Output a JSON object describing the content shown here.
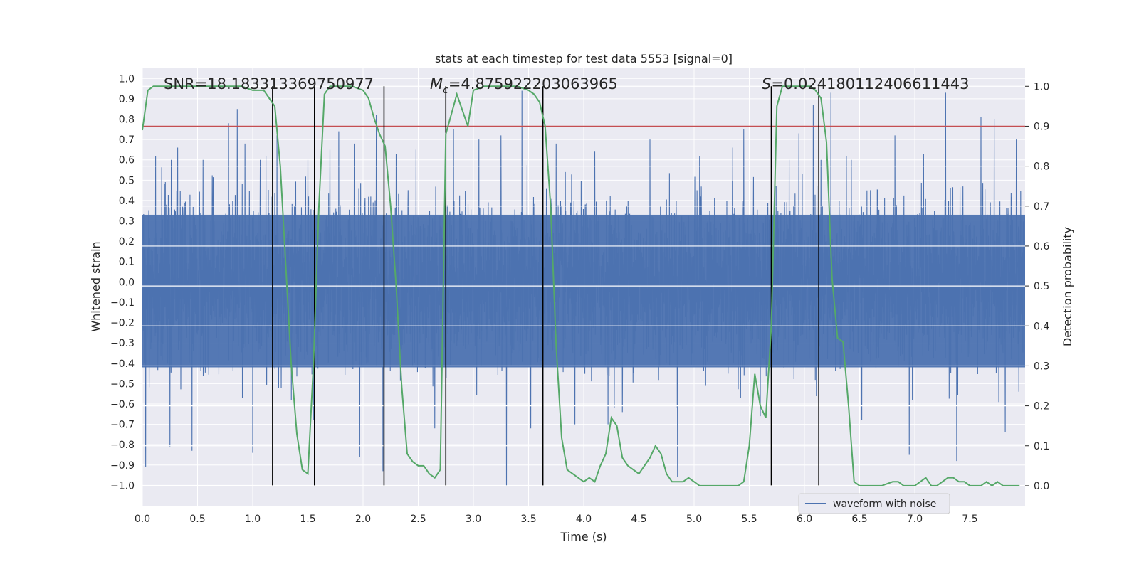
{
  "chart_data": {
    "type": "line",
    "title": "stats at each timestep for test data 5553 [signal=0]",
    "xlabel": "Time (s)",
    "ylabel": "Whitened strain",
    "y2label": "Detection probability",
    "xlim": [
      0.0,
      8.0
    ],
    "ylim": [
      -1.1,
      1.05
    ],
    "y2lim": [
      -0.05,
      1.045
    ],
    "xticks": [
      0.0,
      0.5,
      1.0,
      1.5,
      2.0,
      2.5,
      3.0,
      3.5,
      4.0,
      4.5,
      5.0,
      5.5,
      6.0,
      6.5,
      7.0,
      7.5
    ],
    "yticks": [
      -1.0,
      -0.9,
      -0.8,
      -0.7,
      -0.6,
      -0.5,
      -0.4,
      -0.3,
      -0.2,
      -0.1,
      0.0,
      0.1,
      0.2,
      0.3,
      0.4,
      0.5,
      0.6,
      0.7,
      0.8,
      0.9,
      1.0
    ],
    "y2ticks": [
      0.0,
      0.1,
      0.2,
      0.3,
      0.4,
      0.5,
      0.6,
      0.7,
      0.8,
      0.9,
      1.0
    ],
    "annotations": {
      "snr": "SNR=18.183313369750977",
      "mc_symbol": "M",
      "mc_sub": "c",
      "mc_value": "=4.875922203063965",
      "s_symbol": "S",
      "s_value": "=0.024180112406611443"
    },
    "legend": {
      "label": "waveform with noise",
      "position": "lower-right"
    },
    "threshold": {
      "value": 0.9,
      "axis": "y2",
      "color": "#c44e52"
    },
    "boundaries": [
      1.18,
      1.56,
      2.19,
      2.75,
      3.63,
      5.7,
      6.13
    ],
    "waveform": {
      "name": "waveform with noise",
      "color": "#4c72b0",
      "duration": 8.0,
      "approx_envelope": 0.42,
      "peaks": [
        [
          0.03,
          -0.91
        ],
        [
          0.12,
          0.62
        ],
        [
          0.25,
          -0.81
        ],
        [
          0.32,
          0.66
        ],
        [
          0.45,
          -0.83
        ],
        [
          0.55,
          0.6
        ],
        [
          0.78,
          0.78
        ],
        [
          0.86,
          0.85
        ],
        [
          0.93,
          0.68
        ],
        [
          1.0,
          -0.84
        ],
        [
          1.12,
          0.62
        ],
        [
          1.22,
          0.72
        ],
        [
          1.35,
          -0.58
        ],
        [
          1.5,
          0.6
        ],
        [
          1.55,
          -0.68
        ],
        [
          1.7,
          0.65
        ],
        [
          1.78,
          0.74
        ],
        [
          1.92,
          0.68
        ],
        [
          1.97,
          -0.86
        ],
        [
          2.12,
          0.82
        ],
        [
          2.18,
          -0.93
        ],
        [
          2.3,
          0.63
        ],
        [
          2.48,
          0.65
        ],
        [
          2.65,
          -0.72
        ],
        [
          2.82,
          0.75
        ],
        [
          3.05,
          0.7
        ],
        [
          3.25,
          0.72
        ],
        [
          3.3,
          -1.0
        ],
        [
          3.44,
          0.94
        ],
        [
          3.52,
          -0.72
        ],
        [
          3.75,
          0.68
        ],
        [
          3.92,
          -0.7
        ],
        [
          4.1,
          0.64
        ],
        [
          4.22,
          -0.7
        ],
        [
          4.35,
          -0.64
        ],
        [
          4.6,
          0.7
        ],
        [
          4.85,
          -0.96
        ],
        [
          5.05,
          0.62
        ],
        [
          5.35,
          0.66
        ],
        [
          5.45,
          0.75
        ],
        [
          5.6,
          -0.66
        ],
        [
          5.95,
          0.73
        ],
        [
          6.08,
          0.87
        ],
        [
          6.24,
          0.93
        ],
        [
          6.38,
          0.62
        ],
        [
          6.52,
          -0.68
        ],
        [
          6.82,
          0.72
        ],
        [
          6.95,
          -0.85
        ],
        [
          7.08,
          0.63
        ],
        [
          7.28,
          0.93
        ],
        [
          7.38,
          -0.88
        ],
        [
          7.6,
          0.81
        ],
        [
          7.72,
          0.8
        ],
        [
          7.82,
          -0.74
        ],
        [
          7.92,
          0.7
        ]
      ]
    },
    "series": [
      {
        "name": "Detection probability",
        "axis": "y2",
        "color": "#55a868",
        "x": [
          0.0,
          0.05,
          0.1,
          0.2,
          0.3,
          0.4,
          0.5,
          0.6,
          0.7,
          0.8,
          0.9,
          1.0,
          1.05,
          1.1,
          1.15,
          1.2,
          1.25,
          1.3,
          1.35,
          1.4,
          1.45,
          1.5,
          1.55,
          1.6,
          1.65,
          1.7,
          1.8,
          1.9,
          2.0,
          2.05,
          2.1,
          2.15,
          2.2,
          2.25,
          2.3,
          2.35,
          2.4,
          2.45,
          2.5,
          2.55,
          2.6,
          2.65,
          2.7,
          2.75,
          2.8,
          2.85,
          2.9,
          2.95,
          3.0,
          3.1,
          3.2,
          3.3,
          3.4,
          3.5,
          3.55,
          3.6,
          3.65,
          3.7,
          3.75,
          3.8,
          3.85,
          3.9,
          3.95,
          4.0,
          4.05,
          4.1,
          4.15,
          4.2,
          4.25,
          4.3,
          4.35,
          4.4,
          4.45,
          4.5,
          4.55,
          4.6,
          4.65,
          4.7,
          4.75,
          4.8,
          4.85,
          4.9,
          4.95,
          5.0,
          5.05,
          5.1,
          5.2,
          5.3,
          5.4,
          5.45,
          5.5,
          5.55,
          5.6,
          5.65,
          5.7,
          5.75,
          5.8,
          5.9,
          6.0,
          6.05,
          6.1,
          6.15,
          6.2,
          6.25,
          6.3,
          6.35,
          6.4,
          6.45,
          6.5,
          6.6,
          6.7,
          6.8,
          6.85,
          6.9,
          6.95,
          7.0,
          7.05,
          7.1,
          7.15,
          7.2,
          7.25,
          7.3,
          7.35,
          7.4,
          7.45,
          7.5,
          7.55,
          7.6,
          7.65,
          7.7,
          7.75,
          7.8,
          7.85,
          7.9,
          7.95
        ],
        "values": [
          0.89,
          0.99,
          1.0,
          1.0,
          1.0,
          1.0,
          1.0,
          1.0,
          1.0,
          1.0,
          1.0,
          0.99,
          0.99,
          0.99,
          0.97,
          0.95,
          0.8,
          0.55,
          0.3,
          0.13,
          0.04,
          0.03,
          0.3,
          0.7,
          0.98,
          1.0,
          1.0,
          1.0,
          0.99,
          0.97,
          0.92,
          0.88,
          0.85,
          0.7,
          0.5,
          0.25,
          0.08,
          0.06,
          0.05,
          0.05,
          0.03,
          0.02,
          0.04,
          0.88,
          0.93,
          0.98,
          0.94,
          0.9,
          0.99,
          1.0,
          1.0,
          1.0,
          1.0,
          0.99,
          0.98,
          0.96,
          0.9,
          0.7,
          0.35,
          0.12,
          0.04,
          0.03,
          0.02,
          0.01,
          0.02,
          0.01,
          0.05,
          0.08,
          0.17,
          0.15,
          0.07,
          0.05,
          0.04,
          0.03,
          0.05,
          0.07,
          0.1,
          0.08,
          0.03,
          0.01,
          0.01,
          0.01,
          0.02,
          0.01,
          0.0,
          0.0,
          0.0,
          0.0,
          0.0,
          0.01,
          0.1,
          0.28,
          0.2,
          0.17,
          0.4,
          0.95,
          1.0,
          1.0,
          1.0,
          1.0,
          0.99,
          0.97,
          0.86,
          0.52,
          0.37,
          0.36,
          0.2,
          0.01,
          0.0,
          0.0,
          0.0,
          0.01,
          0.01,
          0.0,
          0.0,
          0.0,
          0.01,
          0.02,
          0.0,
          0.0,
          0.01,
          0.02,
          0.02,
          0.01,
          0.01,
          0.0,
          0.0,
          0.0,
          0.01,
          0.0,
          0.01,
          0.0,
          0.0,
          0.0,
          0.0
        ]
      }
    ]
  }
}
